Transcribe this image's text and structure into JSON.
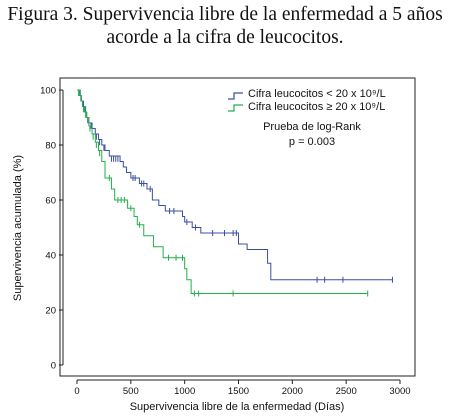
{
  "figure": {
    "title_line1": "Figura 3. Supervivencia libre de la enfermedad a 5 años",
    "title_line2": "acorde a la cifra de leucocitos."
  },
  "chart_data": {
    "type": "line",
    "subtype": "kaplan-meier",
    "xlabel": "Supervivencia libre de la enfermedad (Días)",
    "ylabel": "Supervivencia acumulada (%)",
    "xlim": [
      -150,
      3100
    ],
    "ylim": [
      -5,
      105
    ],
    "xticks": [
      0,
      500,
      1000,
      1500,
      2000,
      2500,
      3000
    ],
    "yticks": [
      0,
      20,
      40,
      60,
      80,
      100
    ],
    "legend_placement": "top-right",
    "annotation_lines": [
      "Prueba de log-Rank",
      "p = 0.003"
    ],
    "series": [
      {
        "name": "Cifra leucocitos < 20 x 10⁹/L",
        "color": "#3b4fa0",
        "steps": [
          [
            0,
            100
          ],
          [
            20,
            98
          ],
          [
            40,
            96
          ],
          [
            55,
            94
          ],
          [
            70,
            92
          ],
          [
            90,
            90
          ],
          [
            110,
            88
          ],
          [
            140,
            86
          ],
          [
            170,
            84
          ],
          [
            200,
            82
          ],
          [
            230,
            80
          ],
          [
            260,
            78
          ],
          [
            300,
            76
          ],
          [
            400,
            74
          ],
          [
            430,
            72
          ],
          [
            460,
            70
          ],
          [
            500,
            68
          ],
          [
            580,
            66
          ],
          [
            650,
            64
          ],
          [
            700,
            60
          ],
          [
            760,
            58
          ],
          [
            820,
            56
          ],
          [
            980,
            54
          ],
          [
            1000,
            52
          ],
          [
            1070,
            50
          ],
          [
            1150,
            48
          ],
          [
            1500,
            44
          ],
          [
            1580,
            42
          ],
          [
            1770,
            37
          ],
          [
            1800,
            31
          ]
        ],
        "end_x": 2930,
        "censor": [
          [
            30,
            99
          ],
          [
            60,
            95
          ],
          [
            80,
            93
          ],
          [
            100,
            89
          ],
          [
            130,
            87
          ],
          [
            180,
            83
          ],
          [
            210,
            81
          ],
          [
            250,
            79
          ],
          [
            320,
            75
          ],
          [
            340,
            75
          ],
          [
            360,
            75
          ],
          [
            380,
            75
          ],
          [
            520,
            68
          ],
          [
            540,
            68
          ],
          [
            600,
            66
          ],
          [
            620,
            66
          ],
          [
            680,
            64
          ],
          [
            860,
            56
          ],
          [
            900,
            56
          ],
          [
            1020,
            52
          ],
          [
            1100,
            50
          ],
          [
            1260,
            48
          ],
          [
            1370,
            48
          ],
          [
            1450,
            48
          ],
          [
            1480,
            48
          ],
          [
            2230,
            31
          ],
          [
            2300,
            31
          ],
          [
            2470,
            31
          ],
          [
            2930,
            31
          ]
        ]
      },
      {
        "name": "Cifra leucocitos ≥ 20 x 10⁹/L",
        "color": "#22b04a",
        "steps": [
          [
            0,
            100
          ],
          [
            15,
            98
          ],
          [
            35,
            96
          ],
          [
            50,
            94
          ],
          [
            70,
            92
          ],
          [
            90,
            90
          ],
          [
            110,
            87
          ],
          [
            140,
            84
          ],
          [
            170,
            81
          ],
          [
            200,
            78
          ],
          [
            230,
            74
          ],
          [
            260,
            68
          ],
          [
            320,
            64
          ],
          [
            350,
            60
          ],
          [
            470,
            57
          ],
          [
            530,
            54
          ],
          [
            560,
            51
          ],
          [
            620,
            47
          ],
          [
            710,
            43
          ],
          [
            800,
            39
          ],
          [
            1000,
            35
          ],
          [
            1020,
            31
          ],
          [
            1060,
            26
          ]
        ],
        "end_x": 2700,
        "censor": [
          [
            25,
            99
          ],
          [
            60,
            93
          ],
          [
            80,
            91
          ],
          [
            120,
            86
          ],
          [
            150,
            83
          ],
          [
            180,
            80
          ],
          [
            210,
            77
          ],
          [
            300,
            68
          ],
          [
            380,
            60
          ],
          [
            410,
            60
          ],
          [
            440,
            60
          ],
          [
            500,
            57
          ],
          [
            580,
            51
          ],
          [
            850,
            39
          ],
          [
            920,
            39
          ],
          [
            980,
            39
          ],
          [
            1090,
            26
          ],
          [
            1130,
            26
          ],
          [
            1450,
            26
          ],
          [
            2700,
            26
          ]
        ]
      }
    ]
  }
}
